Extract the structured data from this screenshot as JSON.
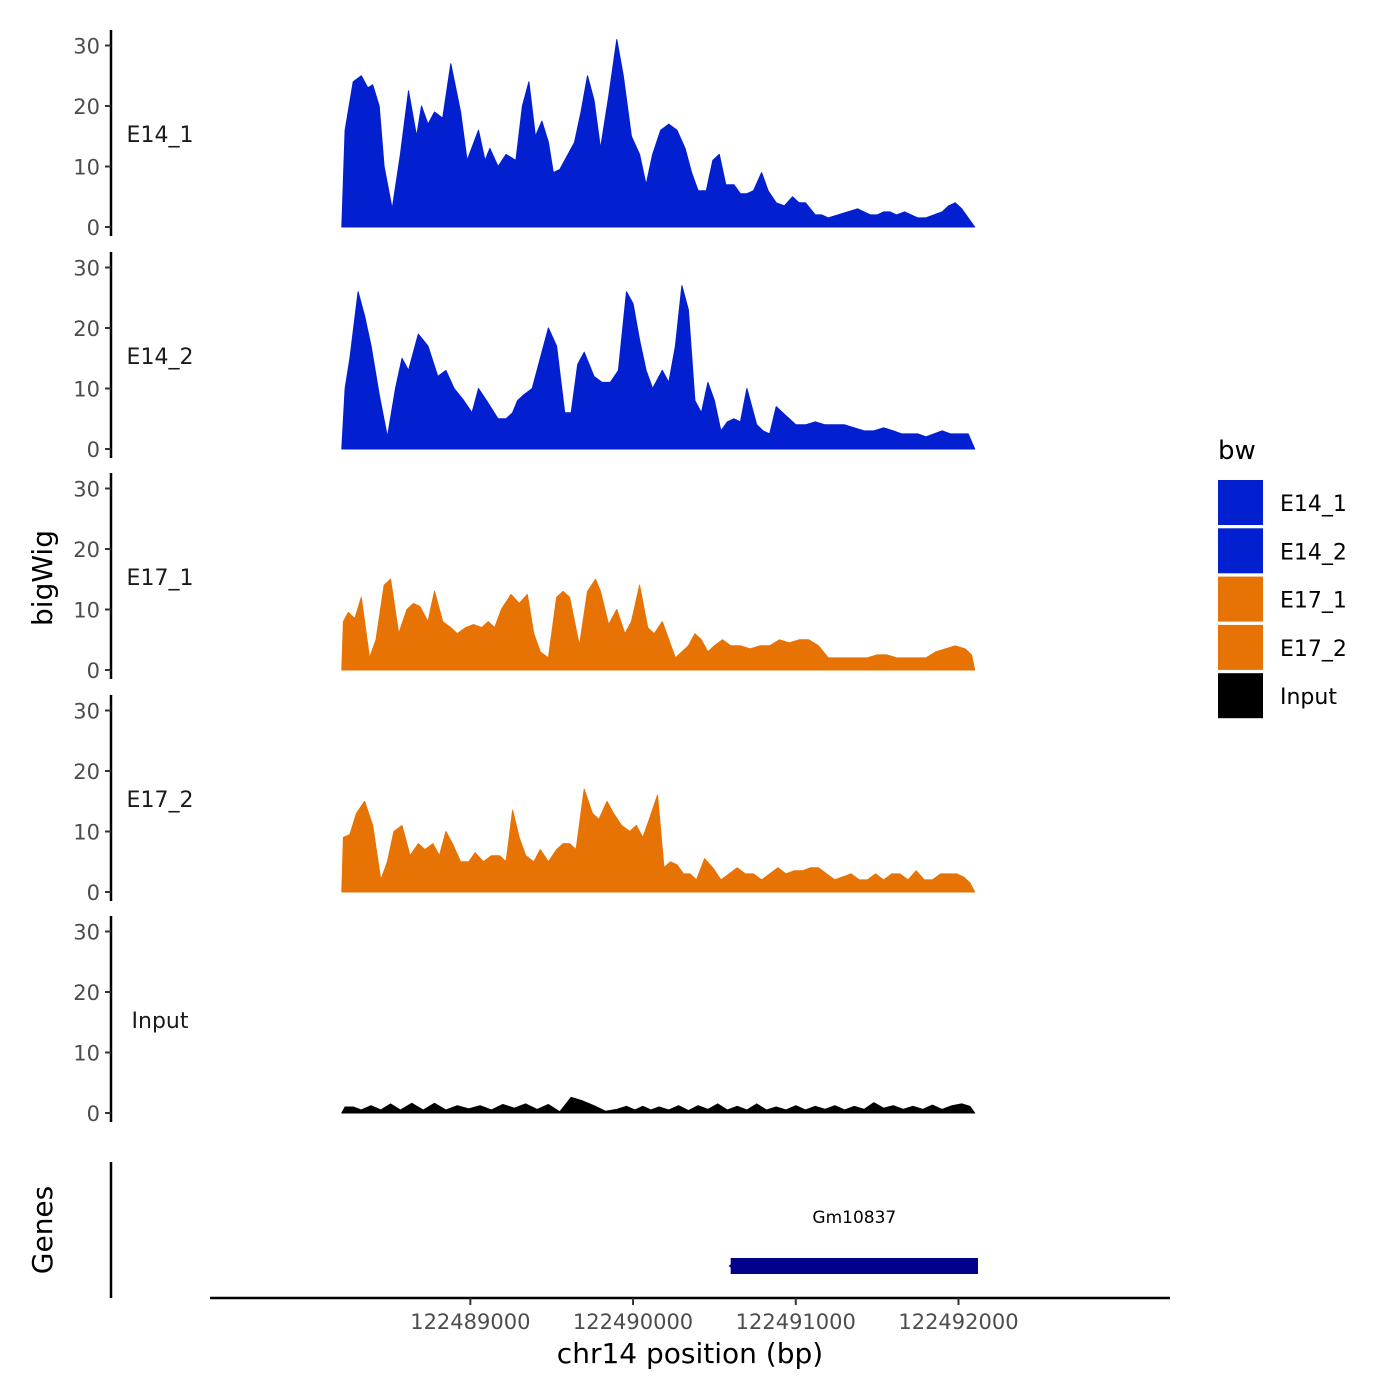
{
  "chart_data": {
    "type": "area",
    "subtype": "genome-track",
    "chromosome": "chr14",
    "xlabel": "chr14 position (bp)",
    "ylabel": "bigWig",
    "gene_track_label": "Genes",
    "xlim": [
      122487400,
      122493300
    ],
    "x_ticks": [
      122489000,
      122490000,
      122491000,
      122492000
    ],
    "x_tick_labels": [
      "122489000",
      "122490000",
      "122491000",
      "122492000"
    ],
    "ylim": [
      0,
      32
    ],
    "y_ticks": [
      0,
      10,
      20,
      30
    ],
    "y_tick_labels": [
      "0",
      "10",
      "20",
      "30"
    ],
    "legend": {
      "title": "bw",
      "placement": "right",
      "entries": [
        {
          "label": "E14_1",
          "color": "#0320D0"
        },
        {
          "label": "E14_2",
          "color": "#0320D0"
        },
        {
          "label": "E17_1",
          "color": "#E67303"
        },
        {
          "label": "E17_2",
          "color": "#E67303"
        },
        {
          "label": "Input",
          "color": "#000000"
        }
      ]
    },
    "series": [
      {
        "name": "E14_1",
        "color": "#0320D0",
        "x": [
          122488210,
          122488230,
          122488280,
          122488330,
          122488370,
          122488400,
          122488440,
          122488470,
          122488520,
          122488570,
          122488620,
          122488670,
          122488700,
          122488740,
          122488780,
          122488830,
          122488880,
          122488940,
          122488980,
          122489050,
          122489090,
          122489120,
          122489170,
          122489220,
          122489280,
          122489320,
          122489360,
          122489400,
          122489440,
          122489480,
          122489510,
          122489550,
          122489600,
          122489640,
          122489680,
          122489720,
          122489760,
          122489800,
          122489850,
          122489900,
          122489940,
          122489990,
          122490040,
          122490080,
          122490120,
          122490170,
          122490220,
          122490270,
          122490320,
          122490360,
          122490400,
          122490450,
          122490490,
          122490530,
          122490570,
          122490620,
          122490660,
          122490700,
          122490740,
          122490790,
          122490830,
          122490880,
          122490930,
          122490980,
          122491020,
          122491060,
          122491120,
          122491160,
          122491200,
          122491260,
          122491320,
          122491380,
          122491420,
          122491460,
          122491500,
          122491540,
          122491580,
          122491620,
          122491670,
          122491710,
          122491750,
          122491800,
          122491850,
          122491900,
          122491940,
          122491980,
          122492020,
          122492060,
          122492100
        ],
        "values": [
          0,
          16,
          24,
          25,
          23,
          23.5,
          20,
          10,
          3,
          12,
          22.5,
          15,
          20,
          17,
          19,
          18,
          27,
          19,
          11,
          16,
          11,
          13,
          10,
          12,
          11,
          20,
          24,
          15,
          17.5,
          14,
          9,
          9.5,
          12,
          14,
          19,
          25,
          21,
          13,
          21.5,
          31,
          25,
          15,
          12,
          7,
          12,
          16,
          17,
          16,
          13,
          9,
          6,
          6,
          11,
          12,
          7,
          7,
          5.5,
          5.5,
          6,
          9,
          6,
          4,
          3.5,
          5,
          4,
          4,
          2,
          2,
          1.5,
          2,
          2.5,
          3,
          2.5,
          2,
          2,
          2.5,
          2.5,
          2,
          2.5,
          2,
          1.5,
          1.5,
          2,
          2.5,
          3.5,
          4,
          3,
          1.5,
          0
        ]
      },
      {
        "name": "E14_2",
        "color": "#0320D0",
        "x": [
          122488210,
          122488230,
          122488260,
          122488310,
          122488350,
          122488390,
          122488440,
          122488490,
          122488540,
          122488580,
          122488620,
          122488680,
          122488740,
          122488800,
          122488850,
          122488900,
          122488960,
          122489010,
          122489050,
          122489100,
          122489170,
          122489220,
          122489260,
          122489290,
          122489330,
          122489380,
          122489430,
          122489480,
          122489530,
          122489580,
          122489620,
          122489660,
          122489700,
          122489760,
          122489810,
          122489860,
          122489910,
          122489960,
          122490000,
          122490040,
          122490080,
          122490120,
          122490180,
          122490220,
          122490260,
          122490300,
          122490340,
          122490380,
          122490420,
          122490460,
          122490500,
          122490540,
          122490580,
          122490620,
          122490660,
          122490700,
          122490760,
          122490800,
          122490840,
          122490880,
          122490920,
          122490960,
          122491000,
          122491060,
          122491120,
          122491180,
          122491240,
          122491300,
          122491360,
          122491420,
          122491480,
          122491540,
          122491600,
          122491650,
          122491700,
          122491750,
          122491800,
          122491850,
          122491900,
          122491950,
          122492000,
          122492060,
          122492100
        ],
        "values": [
          0,
          10,
          15,
          26,
          22,
          17,
          9,
          2,
          10,
          15,
          13,
          19,
          17,
          12,
          13,
          10,
          8,
          6,
          10,
          8,
          5,
          5,
          6,
          8,
          9,
          10,
          15,
          20,
          17,
          6,
          6,
          14,
          16,
          12,
          11,
          11,
          13,
          26,
          24,
          18,
          13,
          10,
          13,
          11,
          17,
          27,
          23,
          8,
          6,
          11,
          8,
          3,
          4.5,
          5,
          4.5,
          10,
          4,
          3,
          2.5,
          7,
          6,
          5,
          4,
          4,
          4.5,
          4,
          4,
          4,
          3.5,
          3,
          3,
          3.5,
          3,
          2.5,
          2.5,
          2.5,
          2,
          2.5,
          3,
          2.5,
          2.5,
          2.5,
          0
        ]
      },
      {
        "name": "E17_1",
        "color": "#E67303",
        "x": [
          122488210,
          122488220,
          122488250,
          122488290,
          122488330,
          122488380,
          122488420,
          122488470,
          122488510,
          122488560,
          122488610,
          122488650,
          122488690,
          122488740,
          122488780,
          122488830,
          122488880,
          122488920,
          122488970,
          122489020,
          122489070,
          122489110,
          122489150,
          122489190,
          122489250,
          122489300,
          122489350,
          122489390,
          122489430,
          122489480,
          122489530,
          122489570,
          122489610,
          122489670,
          122489720,
          122489770,
          122489800,
          122489850,
          122489900,
          122489950,
          122489990,
          122490040,
          122490090,
          122490130,
          122490180,
          122490220,
          122490260,
          122490300,
          122490340,
          122490380,
          122490420,
          122490460,
          122490500,
          122490550,
          122490600,
          122490660,
          122490720,
          122490780,
          122490840,
          122490900,
          122490960,
          122491020,
          122491080,
          122491140,
          122491200,
          122491260,
          122491320,
          122491380,
          122491440,
          122491500,
          122491560,
          122491620,
          122491680,
          122491740,
          122491800,
          122491860,
          122491920,
          122491980,
          122492040,
          122492080,
          122492100
        ],
        "values": [
          0,
          8,
          9.5,
          8.5,
          12,
          2,
          5,
          14,
          15,
          6,
          10,
          11,
          10.5,
          8,
          13,
          8,
          7,
          6,
          7,
          7.5,
          7,
          8,
          7,
          10,
          12.5,
          11,
          12.5,
          6,
          3,
          2,
          12,
          13,
          12,
          4,
          13,
          15,
          13,
          7.5,
          10,
          6,
          8,
          14,
          7,
          6,
          8,
          5,
          2,
          3,
          4,
          6,
          5,
          3,
          4,
          5,
          4,
          4,
          3.5,
          4,
          4,
          5,
          4.5,
          5,
          5,
          4,
          2,
          2,
          2,
          2,
          2,
          2.5,
          2.5,
          2,
          2,
          2,
          2,
          3,
          3.5,
          4,
          3.5,
          2.5,
          0
        ]
      },
      {
        "name": "E17_2",
        "color": "#E67303",
        "x": [
          122488210,
          122488220,
          122488260,
          122488300,
          122488350,
          122488400,
          122488450,
          122488490,
          122488530,
          122488580,
          122488630,
          122488680,
          122488720,
          122488770,
          122488810,
          122488850,
          122488890,
          122488940,
          122488990,
          122489030,
          122489080,
          122489130,
          122489180,
          122489220,
          122489260,
          122489300,
          122489340,
          122489390,
          122489430,
          122489480,
          122489530,
          122489570,
          122489610,
          122489650,
          122489700,
          122489750,
          122489790,
          122489840,
          122489880,
          122489930,
          122489980,
          122490020,
          122490060,
          122490100,
          122490150,
          122490190,
          122490230,
          122490270,
          122490310,
          122490350,
          122490390,
          122490440,
          122490490,
          122490540,
          122490590,
          122490640,
          122490690,
          122490740,
          122490790,
          122490840,
          122490890,
          122490940,
          122490990,
          122491040,
          122491090,
          122491140,
          122491190,
          122491240,
          122491290,
          122491340,
          122491390,
          122491440,
          122491490,
          122491540,
          122491590,
          122491640,
          122491690,
          122491740,
          122491790,
          122491840,
          122491890,
          122491940,
          122491990,
          122492030,
          122492070,
          122492100
        ],
        "values": [
          0,
          9,
          9.5,
          13,
          15,
          11,
          2,
          5,
          10,
          11,
          6,
          8,
          7,
          8,
          6,
          10,
          8,
          5,
          5,
          6.5,
          5,
          6,
          6,
          5,
          13.5,
          9,
          6,
          5,
          7,
          5,
          7,
          8,
          8,
          7,
          17,
          13,
          12,
          15,
          13,
          11,
          10,
          11,
          9,
          12,
          16,
          4,
          5,
          4.5,
          3,
          3,
          2,
          5.5,
          4,
          2,
          3,
          4,
          3,
          3,
          2,
          3,
          4,
          3,
          3.5,
          3.5,
          4,
          4,
          3,
          2,
          2.5,
          3,
          2,
          2,
          3,
          2,
          3,
          3,
          2,
          3.5,
          2,
          2,
          3,
          3,
          3,
          2.5,
          1.5,
          0
        ]
      },
      {
        "name": "Input",
        "color": "#000000",
        "x": [
          122488210,
          122488230,
          122488280,
          122488330,
          122488390,
          122488450,
          122488510,
          122488570,
          122488640,
          122488710,
          122488780,
          122488850,
          122488920,
          122488990,
          122489060,
          122489130,
          122489200,
          122489270,
          122489340,
          122489410,
          122489480,
          122489550,
          122489620,
          122489690,
          122489760,
          122489830,
          122489900,
          122489960,
          122490010,
          122490060,
          122490110,
          122490160,
          122490220,
          122490280,
          122490340,
          122490400,
          122490460,
          122490520,
          122490580,
          122490640,
          122490700,
          122490760,
          122490820,
          122490880,
          122490940,
          122491000,
          122491060,
          122491120,
          122491180,
          122491240,
          122491300,
          122491360,
          122491420,
          122491480,
          122491540,
          122491600,
          122491660,
          122491720,
          122491780,
          122491840,
          122491900,
          122491960,
          122492020,
          122492070,
          122492100
        ],
        "values": [
          0,
          1,
          1,
          0.5,
          1.2,
          0.5,
          1.5,
          0.5,
          1.6,
          0.5,
          1.6,
          0.5,
          1.2,
          0.7,
          1.2,
          0.5,
          1.4,
          0.8,
          1.5,
          0.6,
          1.4,
          0.2,
          2.6,
          2,
          1.2,
          0.3,
          0.6,
          1.1,
          0.5,
          1.1,
          0.5,
          1,
          0.5,
          1.2,
          0.4,
          1.2,
          0.6,
          1.5,
          0.5,
          1.1,
          0.5,
          1.5,
          0.5,
          1,
          0.5,
          1.2,
          0.5,
          1.1,
          0.6,
          1.2,
          0.5,
          1.1,
          0.6,
          1.7,
          0.8,
          1.2,
          0.6,
          1.1,
          0.6,
          1.3,
          0.6,
          1.2,
          1.5,
          1.1,
          0
        ]
      }
    ],
    "genes": [
      {
        "name": "Gm10837",
        "start": 122490600,
        "end": 122492120,
        "strand": "-",
        "color": "#00008B"
      }
    ]
  }
}
